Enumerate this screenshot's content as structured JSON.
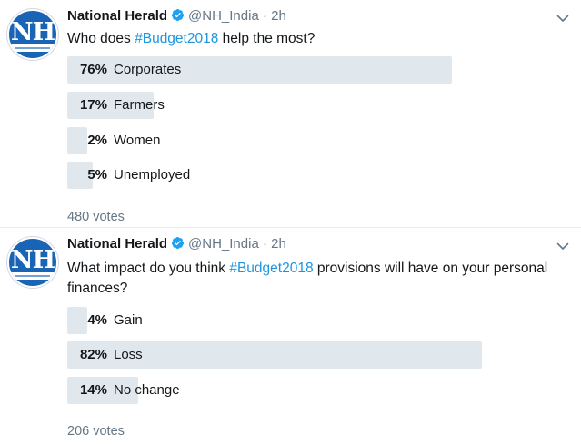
{
  "tweets": [
    {
      "author": {
        "name": "National Herald",
        "handle": "@NH_India",
        "time": "2h",
        "verified": true
      },
      "question": {
        "before": "Who does ",
        "hashtag": "#Budget2018",
        "after": " help the most?"
      },
      "options": [
        {
          "percent_text": "76%",
          "label": "Corporates",
          "percent": 76
        },
        {
          "percent_text": "17%",
          "label": "Farmers",
          "percent": 17
        },
        {
          "percent_text": "2%",
          "label": "Women",
          "percent": 2
        },
        {
          "percent_text": "5%",
          "label": "Unemployed",
          "percent": 5
        }
      ],
      "votes": "480 votes"
    },
    {
      "author": {
        "name": "National Herald",
        "handle": "@NH_India",
        "time": "2h",
        "verified": true
      },
      "question": {
        "before": "What impact do you think ",
        "hashtag": "#Budget2018",
        "after": " provisions will have on your personal finances?"
      },
      "options": [
        {
          "percent_text": "4%",
          "label": "Gain",
          "percent": 4
        },
        {
          "percent_text": "82%",
          "label": "Loss",
          "percent": 82
        },
        {
          "percent_text": "14%",
          "label": "No change",
          "percent": 14
        }
      ],
      "votes": "206 votes"
    }
  ],
  "avatar_text": "NH",
  "colors": {
    "accent": "#1b95e0",
    "bar": "#e1e8ed",
    "muted": "#657786",
    "avatar": "#1a64b5"
  },
  "icons": {
    "verified": "verified-badge-icon",
    "caret": "chevron-down-icon"
  }
}
